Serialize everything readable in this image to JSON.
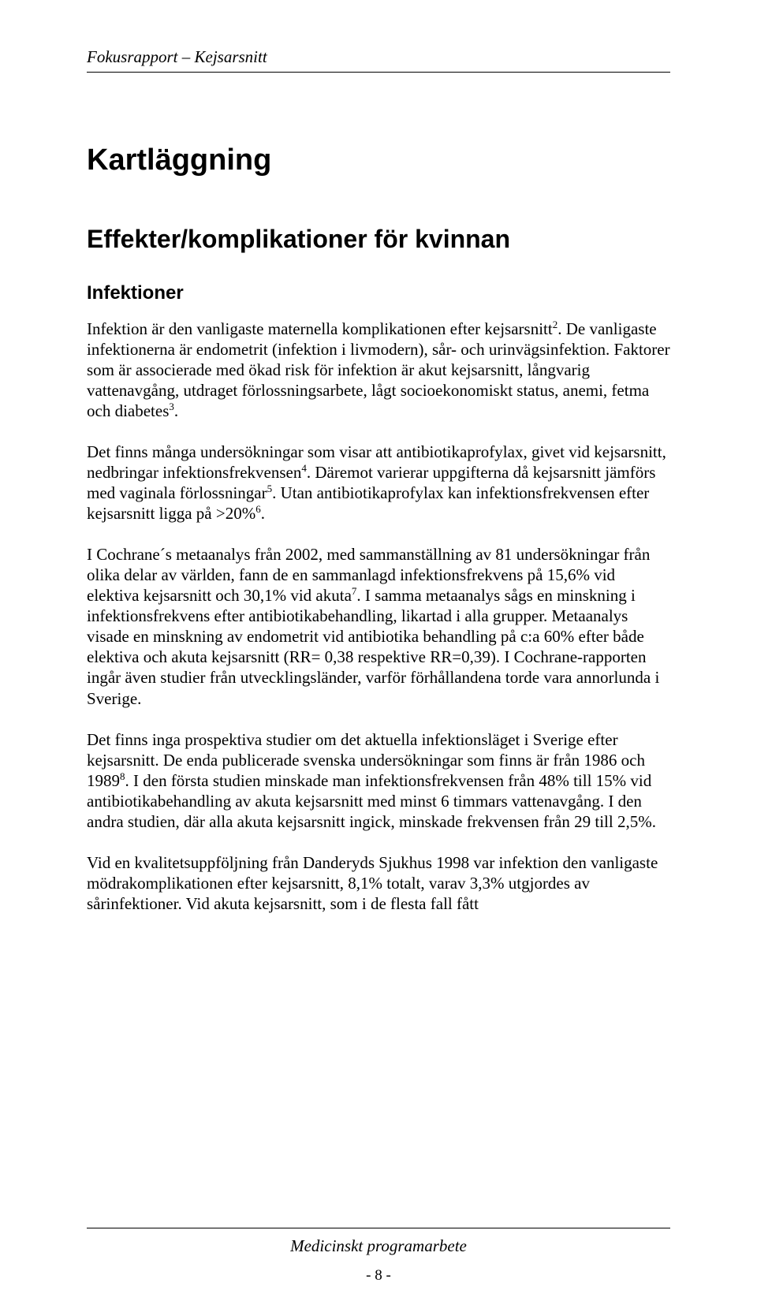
{
  "header": {
    "running_title": "Fokusrapport – Kejsarsnitt"
  },
  "headings": {
    "h1": "Kartläggning",
    "h2": "Effekter/komplikationer för kvinnan",
    "h3": "Infektioner"
  },
  "paragraphs": {
    "p1": "Infektion är den vanligaste maternella komplikationen efter kejsarsnitt<sup>2</sup>. De vanligaste infektionerna är endometrit (infektion i livmodern), sår- och urinvägsinfektion. Faktorer som är associerade med ökad risk för infektion är akut kejsarsnitt, långvarig vattenavgång, utdraget förlossningsarbete, lågt socioekonomiskt status, anemi, fetma och diabetes<sup>3</sup>.",
    "p2": "Det finns många undersökningar som visar att antibiotikaprofylax, givet vid kejsarsnitt, nedbringar infektionsfrekvensen<sup>4</sup>. Däremot varierar uppgifterna då kejsarsnitt jämförs med vaginala förlossningar<sup>5</sup>. Utan antibiotikaprofylax kan infektionsfrekvensen efter kejsarsnitt ligga på >20%<sup>6</sup>.",
    "p3": "I Cochrane´s metaanalys från 2002, med sammanställning av 81 undersökningar från olika delar av världen, fann de en sammanlagd infektionsfrekvens på 15,6% vid elektiva kejsarsnitt och 30,1% vid akuta<sup>7</sup>. I samma metaanalys sågs en minskning i infektionsfrekvens efter antibiotikabehandling, likartad i alla grupper. Metaanalys visade en minskning av endometrit vid antibiotika behandling på c:a 60% efter både elektiva och akuta kejsarsnitt (RR= 0,38 respektive RR=0,39). I Cochrane-rapporten ingår även studier från utvecklingsländer, varför förhållandena torde vara annorlunda i Sverige.",
    "p4": "Det finns inga prospektiva studier om det aktuella infektionsläget i Sverige efter kejsarsnitt. De enda publicerade svenska undersökningar som finns är från 1986 och 1989<sup>8</sup>. I den första studien minskade man infektionsfrekvensen från 48% till 15% vid antibiotikabehandling av akuta kejsarsnitt med minst 6 timmars vattenavgång. I den andra studien, där alla akuta kejsarsnitt ingick, minskade frekvensen från 29 till 2,5%.",
    "p5": "Vid en kvalitetsuppföljning från Danderyds Sjukhus 1998 var infektion den vanligaste mödrakomplikationen efter kejsarsnitt, 8,1% totalt, varav 3,3% utgjordes av sårinfektioner. Vid akuta kejsarsnitt, som i de flesta fall fått"
  },
  "footer": {
    "title": "Medicinskt programarbete",
    "page": "- 8 -"
  }
}
